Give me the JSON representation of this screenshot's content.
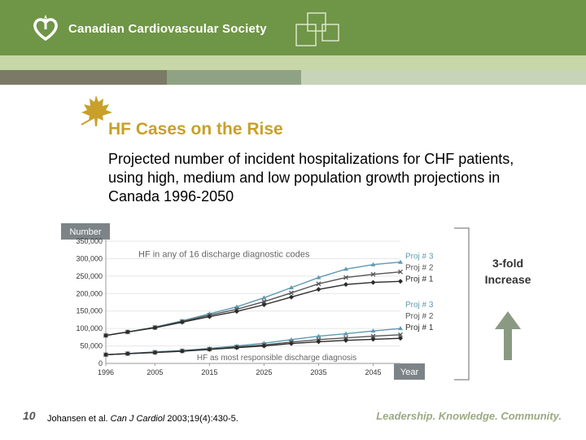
{
  "header": {
    "org_name": "Canadian Cardiovascular Society"
  },
  "slide": {
    "title": "HF Cases on the Rise",
    "subtitle": "Projected number of incident hospitalizations for CHF patients, using high, medium and low population growth projections in Canada 1996-2050"
  },
  "chart_data": {
    "type": "line",
    "ylabel": "Number",
    "xlabel": "Year",
    "ylim": [
      0,
      350000
    ],
    "x": [
      1996,
      2000,
      2005,
      2010,
      2015,
      2020,
      2025,
      2030,
      2035,
      2040,
      2045,
      2050
    ],
    "x_ticks": [
      "1996",
      "2005",
      "2015",
      "2025",
      "2035",
      "2045"
    ],
    "y_ticks": [
      "0",
      "50,000",
      "100,000",
      "150,000",
      "200,000",
      "250,000",
      "300,000",
      "350,000"
    ],
    "annotations": {
      "upper": "HF in any of 16 discharge diagnostic codes",
      "lower": "HF as most responsible discharge diagnosis",
      "side_label": "3-fold Increase"
    },
    "series": [
      {
        "name": "Proj # 3",
        "group": "upper",
        "color": "#5e9ab2",
        "values": [
          80000,
          90000,
          104000,
          122000,
          142000,
          162000,
          188000,
          217000,
          246000,
          270000,
          283000,
          290000
        ]
      },
      {
        "name": "Proj # 2",
        "group": "upper",
        "color": "#555555",
        "values": [
          80000,
          90000,
          103000,
          120000,
          138000,
          155000,
          177000,
          202000,
          228000,
          246000,
          255000,
          262000
        ]
      },
      {
        "name": "Proj # 1",
        "group": "upper",
        "color": "#2b2b2b",
        "values": [
          80000,
          90000,
          102000,
          118000,
          134000,
          149000,
          168000,
          190000,
          212000,
          226000,
          232000,
          235000
        ]
      },
      {
        "name": "Proj # 3",
        "group": "lower",
        "color": "#5e9ab2",
        "values": [
          25000,
          28000,
          33000,
          37000,
          43000,
          50000,
          58000,
          68000,
          78000,
          85000,
          93000,
          100000
        ]
      },
      {
        "name": "Proj # 2",
        "group": "lower",
        "color": "#555555",
        "values": [
          25000,
          28000,
          32000,
          36000,
          41000,
          47000,
          53000,
          61000,
          68000,
          73000,
          78000,
          82000
        ]
      },
      {
        "name": "Proj # 1",
        "group": "lower",
        "color": "#2b2b2b",
        "values": [
          25000,
          28000,
          31000,
          35000,
          40000,
          45000,
          50000,
          57000,
          62000,
          66000,
          69000,
          72000
        ]
      }
    ]
  },
  "footer": {
    "page_number": "10",
    "citation_authors": "Johansen et al. ",
    "citation_journal": "Can J Cardiol",
    "citation_rest": " 2003;19(4):430-5.",
    "tagline": "Leadership. Knowledge. Community."
  }
}
